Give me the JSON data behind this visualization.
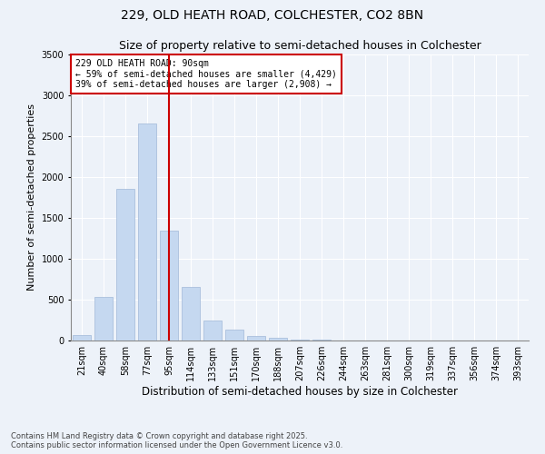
{
  "title1": "229, OLD HEATH ROAD, COLCHESTER, CO2 8BN",
  "title2": "Size of property relative to semi-detached houses in Colchester",
  "xlabel": "Distribution of semi-detached houses by size in Colchester",
  "ylabel": "Number of semi-detached properties",
  "footer1": "Contains HM Land Registry data © Crown copyright and database right 2025.",
  "footer2": "Contains public sector information licensed under the Open Government Licence v3.0.",
  "categories": [
    "21sqm",
    "40sqm",
    "58sqm",
    "77sqm",
    "95sqm",
    "114sqm",
    "133sqm",
    "151sqm",
    "170sqm",
    "188sqm",
    "207sqm",
    "226sqm",
    "244sqm",
    "263sqm",
    "281sqm",
    "300sqm",
    "319sqm",
    "337sqm",
    "356sqm",
    "374sqm",
    "393sqm"
  ],
  "values": [
    70,
    530,
    1850,
    2650,
    1350,
    660,
    250,
    130,
    60,
    30,
    15,
    7,
    5,
    3,
    2,
    1,
    1,
    0,
    0,
    0,
    0
  ],
  "bar_color": "#c5d8f0",
  "bar_edge_color": "#a0b8d8",
  "vline_bin_index": 4,
  "vline_color": "#cc0000",
  "annotation_title": "229 OLD HEATH ROAD: 90sqm",
  "annotation_line2": "← 59% of semi-detached houses are smaller (4,429)",
  "annotation_line3": "39% of semi-detached houses are larger (2,908) →",
  "annotation_box_color": "#cc0000",
  "ylim": [
    0,
    3500
  ],
  "yticks": [
    0,
    500,
    1000,
    1500,
    2000,
    2500,
    3000,
    3500
  ],
  "bg_color": "#edf2f9",
  "plot_bg_color": "#edf2f9",
  "grid_color": "#ffffff",
  "title1_fontsize": 10,
  "title2_fontsize": 9,
  "xlabel_fontsize": 8.5,
  "ylabel_fontsize": 8,
  "tick_fontsize": 7,
  "annotation_fontsize": 7,
  "footer_fontsize": 6
}
